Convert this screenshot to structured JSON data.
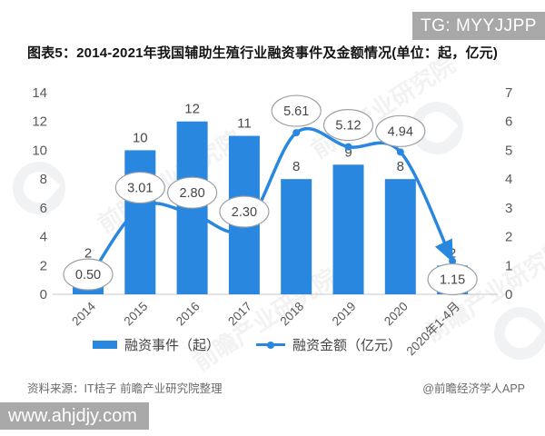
{
  "badge": {
    "text": "TG: MYYJJPP"
  },
  "title": "图表5：2014-2021年我国辅助生殖行业融资事件及金额情况(单位：起，亿元)",
  "chart_data": {
    "type": "bar",
    "subtype": "bar+line combo, dual axis",
    "categories": [
      "2014",
      "2015",
      "2016",
      "2017",
      "2018",
      "2019",
      "2020",
      "2020年1-4月"
    ],
    "series": [
      {
        "name": "融资事件（起）",
        "type": "bar",
        "axis": "left",
        "values": [
          2,
          10,
          12,
          11,
          8,
          9,
          8,
          2
        ]
      },
      {
        "name": "融资金额（亿元）",
        "type": "line",
        "axis": "right",
        "values": [
          0.5,
          3.01,
          2.8,
          2.3,
          5.61,
          5.12,
          4.94,
          1.15
        ],
        "point_labels": [
          "0.50",
          "3.01",
          "2.80",
          "2.30",
          "5.61",
          "5.12",
          "4.94",
          "1.15"
        ]
      }
    ],
    "left_axis": {
      "min": 0,
      "max": 14,
      "ticks": [
        0,
        2,
        4,
        6,
        8,
        10,
        12,
        14
      ]
    },
    "right_axis": {
      "min": 0,
      "max": 7,
      "ticks": [
        0,
        1,
        2,
        3,
        4,
        5,
        6,
        7
      ]
    },
    "grid": false,
    "legend_position": "bottom",
    "label_dy": [
      -6,
      -22,
      -23,
      -18,
      -24,
      -24,
      -23,
      20
    ],
    "colors": {
      "bar": "#2a87e0",
      "line": "#2a87e0",
      "axis_text": "#595959",
      "baseline": "#c9c9c9",
      "bubble_border": "#9aa0a6",
      "bubble_fill": "#ffffff"
    }
  },
  "legend": {
    "items": [
      {
        "label": "融资事件（起）",
        "swatch": "bar"
      },
      {
        "label": "融资金额（亿元）",
        "swatch": "line"
      }
    ]
  },
  "footer": {
    "source": "资料来源：IT桔子 前瞻产业研究院整理",
    "credit": "@前瞻经济学人APP"
  },
  "watermark": {
    "text": "前瞻产业研究院"
  },
  "url_overlay": {
    "text": "www.ahjdjy.com"
  }
}
